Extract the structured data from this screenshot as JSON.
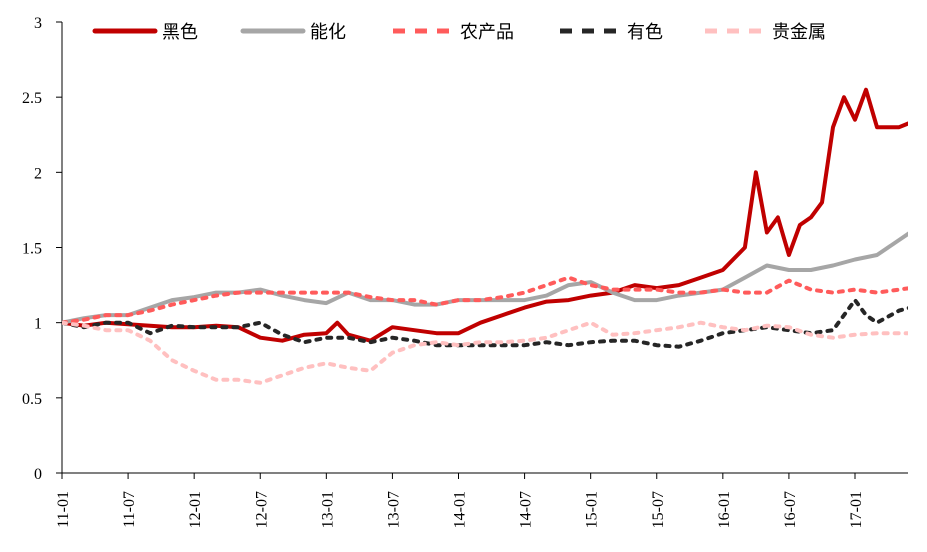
{
  "chart_data": {
    "type": "line",
    "title": "",
    "xlabel": "",
    "ylabel": "",
    "ylim": [
      0,
      3
    ],
    "yticks": [
      "0",
      "0.5",
      "1",
      "1.5",
      "2",
      "2.5",
      "3"
    ],
    "xticks": [
      "11-01",
      "11-07",
      "12-01",
      "12-07",
      "13-01",
      "13-07",
      "14-01",
      "14-07",
      "15-01",
      "15-07",
      "16-01",
      "16-07",
      "17-01"
    ],
    "grid": false,
    "legend_position": "top",
    "series": [
      {
        "name": "黑色",
        "color": "#c00000",
        "dash": "solid",
        "points": [
          [
            "11-01",
            1.0
          ],
          [
            "11-03",
            0.98
          ],
          [
            "11-05",
            1.0
          ],
          [
            "11-07",
            0.99
          ],
          [
            "11-09",
            0.98
          ],
          [
            "11-11",
            0.97
          ],
          [
            "12-01",
            0.97
          ],
          [
            "12-03",
            0.98
          ],
          [
            "12-05",
            0.97
          ],
          [
            "12-07",
            0.9
          ],
          [
            "12-09",
            0.88
          ],
          [
            "12-11",
            0.92
          ],
          [
            "13-01",
            0.93
          ],
          [
            "13-02",
            1.0
          ],
          [
            "13-03",
            0.92
          ],
          [
            "13-05",
            0.88
          ],
          [
            "13-07",
            0.97
          ],
          [
            "13-09",
            0.95
          ],
          [
            "13-11",
            0.93
          ],
          [
            "14-01",
            0.93
          ],
          [
            "14-03",
            1.0
          ],
          [
            "14-05",
            1.05
          ],
          [
            "14-07",
            1.1
          ],
          [
            "14-09",
            1.14
          ],
          [
            "14-11",
            1.15
          ],
          [
            "15-01",
            1.18
          ],
          [
            "15-03",
            1.2
          ],
          [
            "15-05",
            1.25
          ],
          [
            "15-07",
            1.23
          ],
          [
            "15-09",
            1.25
          ],
          [
            "15-11",
            1.3
          ],
          [
            "16-01",
            1.35
          ],
          [
            "16-03",
            1.5
          ],
          [
            "16-04",
            2.0
          ],
          [
            "16-05",
            1.6
          ],
          [
            "16-06",
            1.7
          ],
          [
            "16-07",
            1.45
          ],
          [
            "16-08",
            1.65
          ],
          [
            "16-09",
            1.7
          ],
          [
            "16-10",
            1.8
          ],
          [
            "16-11",
            2.3
          ],
          [
            "16-12",
            2.5
          ],
          [
            "17-01",
            2.35
          ],
          [
            "17-02",
            2.55
          ],
          [
            "17-03",
            2.3
          ],
          [
            "17-05",
            2.3
          ],
          [
            "17-06",
            2.33
          ]
        ]
      },
      {
        "name": "能化",
        "color": "#a6a6a6",
        "dash": "solid",
        "points": [
          [
            "11-01",
            1.0
          ],
          [
            "11-03",
            1.03
          ],
          [
            "11-05",
            1.05
          ],
          [
            "11-07",
            1.05
          ],
          [
            "11-09",
            1.1
          ],
          [
            "11-11",
            1.15
          ],
          [
            "12-01",
            1.17
          ],
          [
            "12-03",
            1.2
          ],
          [
            "12-05",
            1.2
          ],
          [
            "12-07",
            1.22
          ],
          [
            "12-09",
            1.18
          ],
          [
            "12-11",
            1.15
          ],
          [
            "13-01",
            1.13
          ],
          [
            "13-03",
            1.2
          ],
          [
            "13-05",
            1.15
          ],
          [
            "13-07",
            1.15
          ],
          [
            "13-09",
            1.12
          ],
          [
            "13-11",
            1.12
          ],
          [
            "14-01",
            1.15
          ],
          [
            "14-03",
            1.15
          ],
          [
            "14-05",
            1.15
          ],
          [
            "14-07",
            1.15
          ],
          [
            "14-09",
            1.18
          ],
          [
            "14-11",
            1.25
          ],
          [
            "15-01",
            1.27
          ],
          [
            "15-03",
            1.2
          ],
          [
            "15-05",
            1.15
          ],
          [
            "15-07",
            1.15
          ],
          [
            "15-09",
            1.18
          ],
          [
            "15-11",
            1.2
          ],
          [
            "16-01",
            1.22
          ],
          [
            "16-03",
            1.3
          ],
          [
            "16-05",
            1.38
          ],
          [
            "16-07",
            1.35
          ],
          [
            "16-09",
            1.35
          ],
          [
            "16-11",
            1.38
          ],
          [
            "17-01",
            1.42
          ],
          [
            "17-03",
            1.45
          ],
          [
            "17-05",
            1.55
          ],
          [
            "17-06",
            1.6
          ]
        ]
      },
      {
        "name": "农产品",
        "color": "#ff5b5b",
        "dash": "dashed",
        "points": [
          [
            "11-01",
            1.0
          ],
          [
            "11-03",
            1.02
          ],
          [
            "11-05",
            1.05
          ],
          [
            "11-07",
            1.05
          ],
          [
            "11-09",
            1.08
          ],
          [
            "11-11",
            1.12
          ],
          [
            "12-01",
            1.15
          ],
          [
            "12-03",
            1.18
          ],
          [
            "12-05",
            1.2
          ],
          [
            "12-07",
            1.2
          ],
          [
            "12-09",
            1.2
          ],
          [
            "12-11",
            1.2
          ],
          [
            "13-01",
            1.2
          ],
          [
            "13-03",
            1.2
          ],
          [
            "13-05",
            1.17
          ],
          [
            "13-07",
            1.15
          ],
          [
            "13-09",
            1.15
          ],
          [
            "13-11",
            1.12
          ],
          [
            "14-01",
            1.15
          ],
          [
            "14-03",
            1.15
          ],
          [
            "14-05",
            1.17
          ],
          [
            "14-07",
            1.2
          ],
          [
            "14-09",
            1.25
          ],
          [
            "14-11",
            1.3
          ],
          [
            "15-01",
            1.25
          ],
          [
            "15-03",
            1.22
          ],
          [
            "15-05",
            1.22
          ],
          [
            "15-07",
            1.22
          ],
          [
            "15-09",
            1.2
          ],
          [
            "15-11",
            1.2
          ],
          [
            "16-01",
            1.22
          ],
          [
            "16-03",
            1.2
          ],
          [
            "16-05",
            1.2
          ],
          [
            "16-07",
            1.28
          ],
          [
            "16-09",
            1.22
          ],
          [
            "16-11",
            1.2
          ],
          [
            "17-01",
            1.22
          ],
          [
            "17-03",
            1.2
          ],
          [
            "17-05",
            1.22
          ],
          [
            "17-06",
            1.23
          ]
        ]
      },
      {
        "name": "有色",
        "color": "#262626",
        "dash": "dashed",
        "points": [
          [
            "11-01",
            1.0
          ],
          [
            "11-03",
            0.97
          ],
          [
            "11-05",
            1.0
          ],
          [
            "11-07",
            1.0
          ],
          [
            "11-09",
            0.93
          ],
          [
            "11-11",
            0.98
          ],
          [
            "12-01",
            0.97
          ],
          [
            "12-03",
            0.97
          ],
          [
            "12-05",
            0.97
          ],
          [
            "12-07",
            1.0
          ],
          [
            "12-09",
            0.92
          ],
          [
            "12-11",
            0.87
          ],
          [
            "13-01",
            0.9
          ],
          [
            "13-03",
            0.9
          ],
          [
            "13-05",
            0.87
          ],
          [
            "13-07",
            0.9
          ],
          [
            "13-09",
            0.88
          ],
          [
            "13-11",
            0.85
          ],
          [
            "14-01",
            0.85
          ],
          [
            "14-03",
            0.85
          ],
          [
            "14-05",
            0.85
          ],
          [
            "14-07",
            0.85
          ],
          [
            "14-09",
            0.87
          ],
          [
            "14-11",
            0.85
          ],
          [
            "15-01",
            0.87
          ],
          [
            "15-03",
            0.88
          ],
          [
            "15-05",
            0.88
          ],
          [
            "15-07",
            0.85
          ],
          [
            "15-09",
            0.84
          ],
          [
            "15-11",
            0.88
          ],
          [
            "16-01",
            0.93
          ],
          [
            "16-03",
            0.95
          ],
          [
            "16-05",
            0.97
          ],
          [
            "16-07",
            0.95
          ],
          [
            "16-09",
            0.93
          ],
          [
            "16-11",
            0.95
          ],
          [
            "17-01",
            1.15
          ],
          [
            "17-02",
            1.05
          ],
          [
            "17-03",
            1.0
          ],
          [
            "17-05",
            1.08
          ],
          [
            "17-06",
            1.1
          ]
        ]
      },
      {
        "name": "贵金属",
        "color": "#ffc0c0",
        "dash": "dashed",
        "points": [
          [
            "11-01",
            1.0
          ],
          [
            "11-03",
            0.98
          ],
          [
            "11-05",
            0.95
          ],
          [
            "11-07",
            0.95
          ],
          [
            "11-09",
            0.88
          ],
          [
            "11-11",
            0.75
          ],
          [
            "12-01",
            0.68
          ],
          [
            "12-03",
            0.62
          ],
          [
            "12-05",
            0.62
          ],
          [
            "12-07",
            0.6
          ],
          [
            "12-09",
            0.65
          ],
          [
            "12-11",
            0.7
          ],
          [
            "13-01",
            0.73
          ],
          [
            "13-03",
            0.7
          ],
          [
            "13-05",
            0.68
          ],
          [
            "13-07",
            0.8
          ],
          [
            "13-09",
            0.85
          ],
          [
            "13-11",
            0.87
          ],
          [
            "14-01",
            0.85
          ],
          [
            "14-03",
            0.87
          ],
          [
            "14-05",
            0.87
          ],
          [
            "14-07",
            0.88
          ],
          [
            "14-09",
            0.9
          ],
          [
            "14-11",
            0.95
          ],
          [
            "15-01",
            1.0
          ],
          [
            "15-03",
            0.92
          ],
          [
            "15-05",
            0.93
          ],
          [
            "15-07",
            0.95
          ],
          [
            "15-09",
            0.97
          ],
          [
            "15-11",
            1.0
          ],
          [
            "16-01",
            0.97
          ],
          [
            "16-03",
            0.95
          ],
          [
            "16-05",
            0.98
          ],
          [
            "16-07",
            0.97
          ],
          [
            "16-09",
            0.92
          ],
          [
            "16-11",
            0.9
          ],
          [
            "17-01",
            0.92
          ],
          [
            "17-03",
            0.93
          ],
          [
            "17-05",
            0.93
          ],
          [
            "17-06",
            0.93
          ]
        ]
      }
    ]
  }
}
